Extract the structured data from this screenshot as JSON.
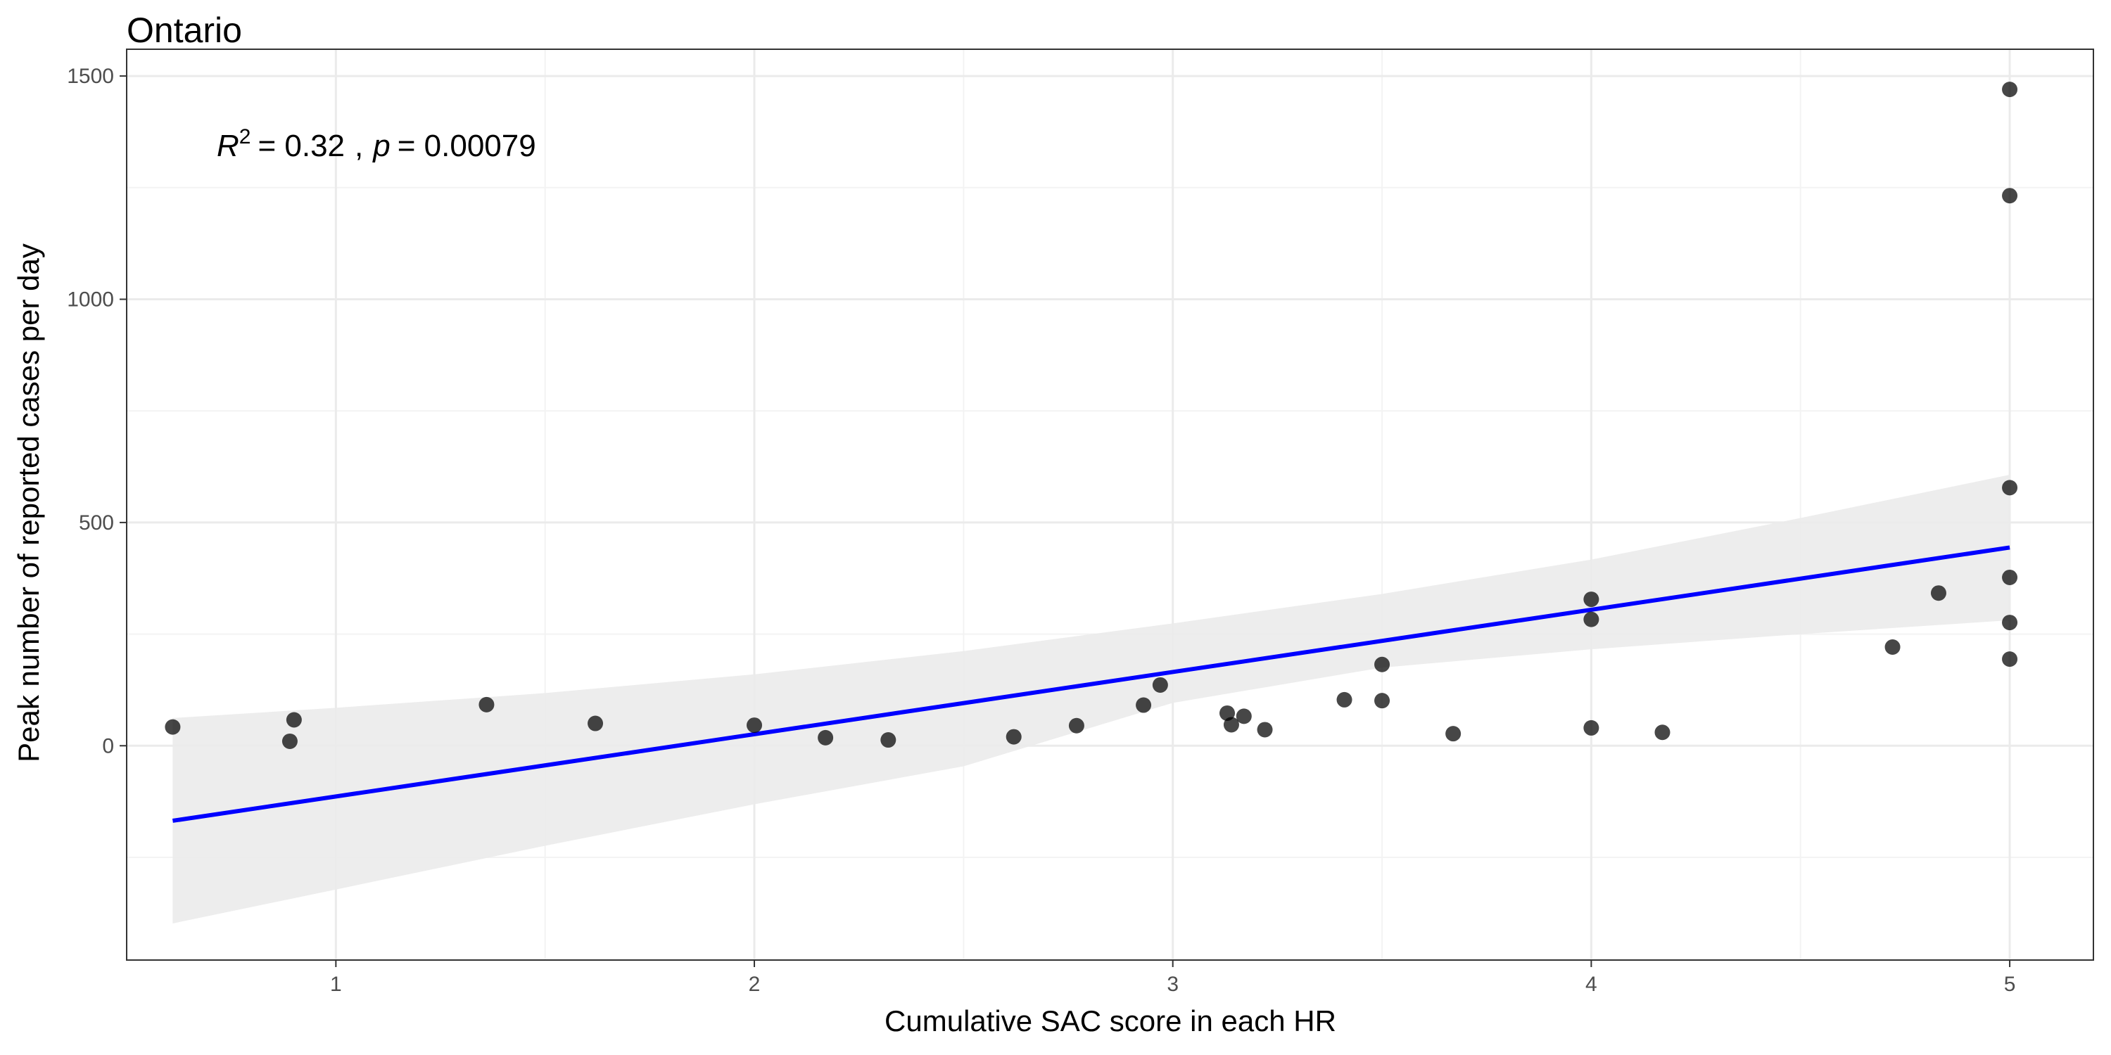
{
  "chart_data": {
    "type": "scatter",
    "title": "Ontario",
    "xlabel": "Cumulative SAC score in each HR",
    "ylabel": "Peak number of reported cases per day",
    "xlim": [
      0.5,
      5.2
    ],
    "ylim": [
      -480,
      1560
    ],
    "x_ticks": [
      1,
      2,
      3,
      4,
      5
    ],
    "x_tick_labels": [
      "1",
      "2",
      "3",
      "4",
      "5"
    ],
    "y_ticks": [
      0,
      500,
      1000,
      1500
    ],
    "y_tick_labels": [
      "0",
      "500",
      "1000",
      "1500"
    ],
    "x_minor_gridlines": [
      0.5,
      1.5,
      2.5,
      3.5,
      4.5
    ],
    "y_minor_gridlines": [
      -250,
      250,
      750,
      1250
    ],
    "grid": true,
    "legend": "none",
    "annotation": {
      "r_symbol": "R",
      "r_exponent": "2",
      "r_value": "= 0.32",
      "separator": ",",
      "p_symbol": "p",
      "p_value": "= 0.00079"
    },
    "points": [
      {
        "x": 0.61,
        "y": 42
      },
      {
        "x": 0.89,
        "y": 10
      },
      {
        "x": 0.9,
        "y": 58
      },
      {
        "x": 1.36,
        "y": 92
      },
      {
        "x": 1.62,
        "y": 50
      },
      {
        "x": 2.0,
        "y": 46
      },
      {
        "x": 2.17,
        "y": 18
      },
      {
        "x": 2.32,
        "y": 13
      },
      {
        "x": 2.62,
        "y": 20
      },
      {
        "x": 2.77,
        "y": 45
      },
      {
        "x": 2.93,
        "y": 91
      },
      {
        "x": 2.97,
        "y": 136
      },
      {
        "x": 3.13,
        "y": 73
      },
      {
        "x": 3.14,
        "y": 47
      },
      {
        "x": 3.17,
        "y": 66
      },
      {
        "x": 3.22,
        "y": 36
      },
      {
        "x": 3.41,
        "y": 103
      },
      {
        "x": 3.5,
        "y": 101
      },
      {
        "x": 3.5,
        "y": 182
      },
      {
        "x": 3.67,
        "y": 27
      },
      {
        "x": 4.0,
        "y": 40
      },
      {
        "x": 4.0,
        "y": 283
      },
      {
        "x": 4.0,
        "y": 328
      },
      {
        "x": 4.17,
        "y": 30
      },
      {
        "x": 4.72,
        "y": 221
      },
      {
        "x": 4.83,
        "y": 342
      },
      {
        "x": 5.0,
        "y": 194
      },
      {
        "x": 5.0,
        "y": 276
      },
      {
        "x": 5.0,
        "y": 377
      },
      {
        "x": 5.0,
        "y": 578
      },
      {
        "x": 5.0,
        "y": 1232
      },
      {
        "x": 5.0,
        "y": 1470
      }
    ],
    "regression_line": {
      "x": [
        0.61,
        5.0
      ],
      "y": [
        -168,
        444
      ],
      "color": "#0000ff"
    },
    "confidence_band": {
      "x": [
        0.61,
        1.0,
        1.5,
        2.0,
        2.5,
        3.0,
        3.5,
        4.0,
        4.5,
        5.0
      ],
      "lower": [
        -398,
        -322,
        -224,
        -131,
        -46,
        96,
        175,
        216,
        250,
        281
      ],
      "upper": [
        62,
        85,
        118,
        160,
        212,
        274,
        340,
        417,
        510,
        607
      ],
      "color": "#ebebeb"
    },
    "colors": {
      "point": "#000000",
      "panel_border": "#333333",
      "grid_major": "#ebebeb",
      "grid_minor": "#f3f3f3",
      "tick_mark": "#333333"
    }
  }
}
